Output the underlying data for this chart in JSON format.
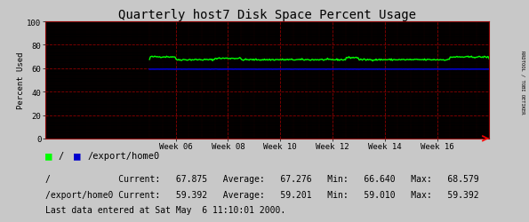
{
  "title": "Quarterly host7 Disk Space Percent Usage",
  "ylabel": "Percent Used",
  "xlim": [
    0,
    17
  ],
  "ylim": [
    0,
    100
  ],
  "yticks": [
    0,
    20,
    40,
    60,
    80,
    100
  ],
  "xtick_labels": [
    "Week 06",
    "Week 08",
    "Week 10",
    "Week 12",
    "Week 14",
    "Week 16"
  ],
  "xtick_positions": [
    5,
    7,
    9,
    11,
    13,
    15
  ],
  "bg_color": "#c8c8c8",
  "plot_bg_color": "#000000",
  "grid_color_major": "#8b0000",
  "line1_color": "#00ff00",
  "line2_color": "#0000cd",
  "line1_label": "/",
  "line2_label": "/export/home0",
  "line1_avg": 67.276,
  "line1_min": 66.64,
  "line1_max": 68.579,
  "line1_current": 67.875,
  "line2_avg": 59.201,
  "line2_min": 59.01,
  "line2_max": 59.392,
  "line2_current": 59.392,
  "footer": "Last data entered at Sat May  6 11:10:01 2000.",
  "rrd_label": "RRDTOOL / TOBI OETIKER",
  "title_fontsize": 10,
  "axis_fontsize": 6.5,
  "legend_fontsize": 7.5,
  "stats_fontsize": 7.0
}
